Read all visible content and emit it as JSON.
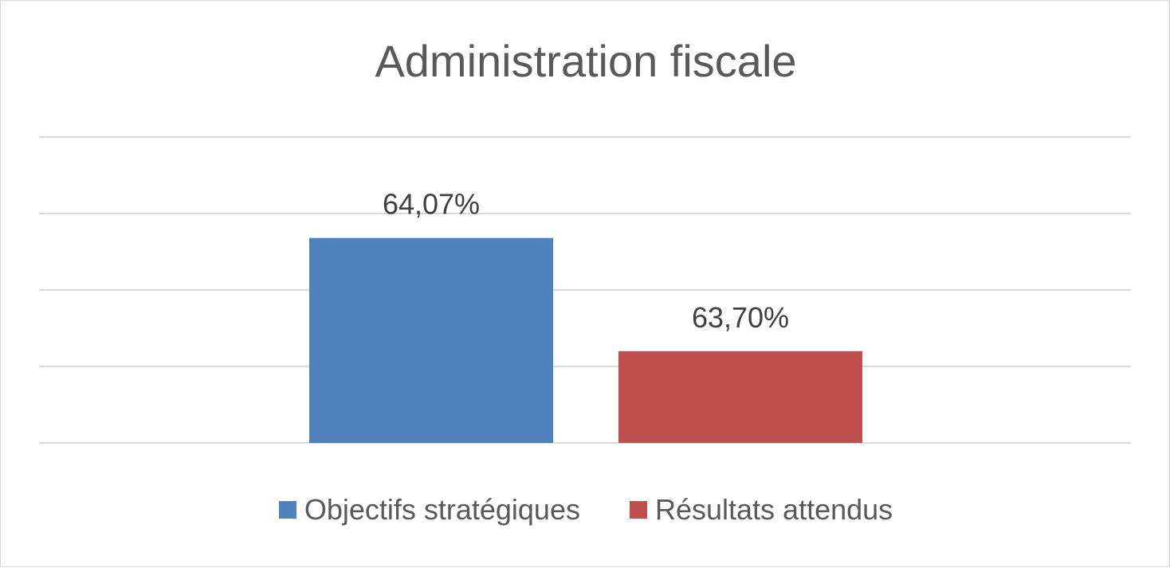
{
  "chart_data": {
    "type": "bar",
    "title": "Administration fiscale",
    "categories": [
      ""
    ],
    "series": [
      {
        "name": "Objectifs stratégiques",
        "values": [
          64.07
        ],
        "label": "64,07%",
        "color": "#4f81bd"
      },
      {
        "name": "Résultats attendus",
        "values": [
          63.7
        ],
        "label": "63,70%",
        "color": "#c0504d"
      }
    ],
    "xlabel": "",
    "ylabel": "",
    "ylim": [
      63.4,
      64.4
    ],
    "gridlines": true,
    "axis_labels_visible": false,
    "legend_position": "bottom",
    "gridline_color": "#d9d9d9",
    "label_color": "#404040"
  }
}
